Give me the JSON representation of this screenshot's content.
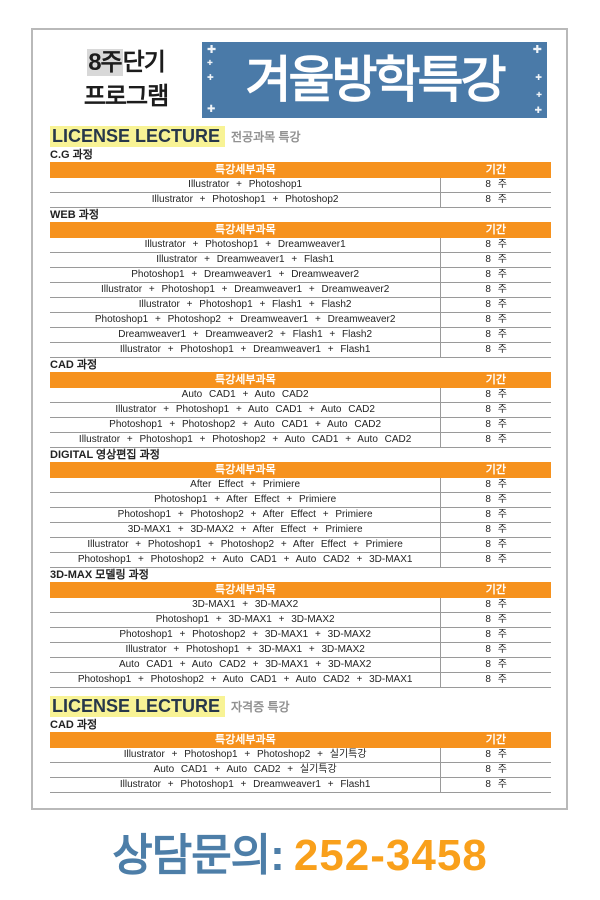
{
  "colors": {
    "accent_orange": "#f6921e",
    "banner_blue": "#4a7aa8",
    "highlight_yellow": "#f8f395",
    "highlight_gray": "#d8d8d8",
    "footer_blue": "#4d7ea8",
    "footer_orange": "#f9a01b"
  },
  "header": {
    "program_highlight": "8주",
    "program_rest": "단기",
    "program_line2": "프로그램",
    "banner_title": "겨울방학특강",
    "sparkle_glyph": "✚"
  },
  "table_headers": {
    "subject": "특강세부과목",
    "period": "기간"
  },
  "sections": [
    {
      "heading": "LICENSE LECTURE",
      "subtitle": "전공과목 특강",
      "groups": [
        {
          "label": "C.G 과정",
          "rows": [
            {
              "subject": "Illustrator + Photoshop1",
              "period": "8 주"
            },
            {
              "subject": "Illustrator + Photoshop1 + Photoshop2",
              "period": "8 주"
            }
          ]
        },
        {
          "label": "WEB 과정",
          "rows": [
            {
              "subject": "Illustrator + Photoshop1 + Dreamweaver1",
              "period": "8 주"
            },
            {
              "subject": "Illustrator + Dreamweaver1 + Flash1",
              "period": "8 주"
            },
            {
              "subject": "Photoshop1 + Dreamweaver1 + Dreamweaver2",
              "period": "8 주"
            },
            {
              "subject": "Illustrator + Photoshop1 + Dreamweaver1 + Dreamweaver2",
              "period": "8 주"
            },
            {
              "subject": "Illustrator + Photoshop1 + Flash1 + Flash2",
              "period": "8 주"
            },
            {
              "subject": "Photoshop1 + Photoshop2 + Dreamweaver1 + Dreamweaver2",
              "period": "8 주"
            },
            {
              "subject": "Dreamweaver1 + Dreamweaver2 + Flash1 + Flash2",
              "period": "8 주"
            },
            {
              "subject": "Illustrator + Photoshop1 + Dreamweaver1 + Flash1",
              "period": "8 주"
            }
          ]
        },
        {
          "label": "CAD 과정",
          "rows": [
            {
              "subject": "Auto CAD1 + Auto CAD2",
              "period": "8 주"
            },
            {
              "subject": "Illustrator + Photoshop1 + Auto CAD1 + Auto CAD2",
              "period": "8 주"
            },
            {
              "subject": "Photoshop1 + Photoshop2 + Auto CAD1 + Auto CAD2",
              "period": "8 주"
            },
            {
              "subject": "Illustrator + Photoshop1 + Photoshop2 + Auto CAD1 + Auto CAD2",
              "period": "8 주"
            }
          ]
        },
        {
          "label": "DIGITAL 영상편집 과정",
          "rows": [
            {
              "subject": "After Effect + Primiere",
              "period": "8 주"
            },
            {
              "subject": "Photoshop1 + After Effect + Primiere",
              "period": "8 주"
            },
            {
              "subject": "Photoshop1 + Photoshop2 + After Effect + Primiere",
              "period": "8 주"
            },
            {
              "subject": "3D-MAX1 + 3D-MAX2 + After Effect + Primiere",
              "period": "8 주"
            },
            {
              "subject": "Illustrator + Photoshop1 + Photoshop2 + After Effect + Primiere",
              "period": "8 주"
            },
            {
              "subject": "Photoshop1 + Photoshop2 + Auto CAD1 + Auto CAD2 + 3D-MAX1",
              "period": "8 주"
            }
          ]
        },
        {
          "label": "3D-MAX 모델링 과정",
          "rows": [
            {
              "subject": "3D-MAX1 + 3D-MAX2",
              "period": "8 주"
            },
            {
              "subject": "Photoshop1 + 3D-MAX1 + 3D-MAX2",
              "period": "8 주"
            },
            {
              "subject": "Photoshop1 + Photoshop2 + 3D-MAX1 + 3D-MAX2",
              "period": "8 주"
            },
            {
              "subject": "Illustrator + Photoshop1 + 3D-MAX1 + 3D-MAX2",
              "period": "8 주"
            },
            {
              "subject": "Auto CAD1 + Auto CAD2 + 3D-MAX1 + 3D-MAX2",
              "period": "8 주"
            },
            {
              "subject": "Photoshop1 + Photoshop2 + Auto CAD1 + Auto CAD2 + 3D-MAX1",
              "period": "8 주"
            }
          ]
        }
      ]
    },
    {
      "heading": "LICENSE LECTURE",
      "subtitle": "자격증 특강",
      "groups": [
        {
          "label": "CAD 과정",
          "rows": [
            {
              "subject": "Illustrator + Photoshop1 + Photoshop2 + 실기특강",
              "period": "8 주"
            },
            {
              "subject": "Auto CAD1 + Auto CAD2 + 실기특강",
              "period": "8 주"
            },
            {
              "subject": "Illustrator + Photoshop1 + Dreamweaver1 + Flash1",
              "period": "8 주"
            }
          ]
        }
      ]
    }
  ],
  "footer": {
    "label": "상담문의:",
    "phone": "252-3458"
  }
}
